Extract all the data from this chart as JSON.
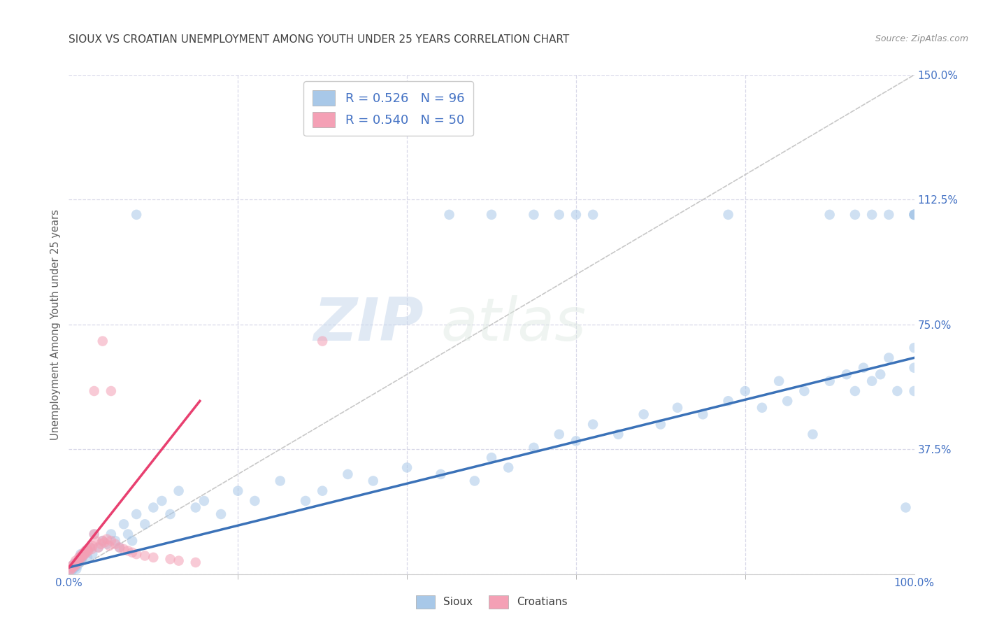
{
  "title": "SIOUX VS CROATIAN UNEMPLOYMENT AMONG YOUTH UNDER 25 YEARS CORRELATION CHART",
  "source": "Source: ZipAtlas.com",
  "ylabel": "Unemployment Among Youth under 25 years",
  "xlim": [
    0.0,
    1.0
  ],
  "ylim": [
    0.0,
    1.5
  ],
  "yticks": [
    0.0,
    0.375,
    0.75,
    1.125,
    1.5
  ],
  "yticklabels": [
    "",
    "37.5%",
    "75.0%",
    "112.5%",
    "150.0%"
  ],
  "sioux_R": 0.526,
  "sioux_N": 96,
  "croatian_R": 0.54,
  "croatian_N": 50,
  "sioux_color": "#a8c8e8",
  "croatian_color": "#f4a0b5",
  "sioux_line_color": "#3b72b8",
  "croatian_line_color": "#e84070",
  "diagonal_color": "#c8c8c8",
  "background_color": "#ffffff",
  "grid_color": "#d8d8e8",
  "title_color": "#404040",
  "axis_color": "#4472c4",
  "legend_color": "#4472c4",
  "watermark_zip": "ZIP",
  "watermark_atlas": "atlas",
  "marker_size": 110,
  "marker_alpha": 0.55,
  "sioux_x": [
    0.001,
    0.002,
    0.003,
    0.004,
    0.005,
    0.006,
    0.007,
    0.008,
    0.009,
    0.01,
    0.011,
    0.012,
    0.013,
    0.014,
    0.015,
    0.016,
    0.018,
    0.02,
    0.022,
    0.025,
    0.028,
    0.03,
    0.035,
    0.04,
    0.045,
    0.05,
    0.055,
    0.06,
    0.065,
    0.07,
    0.075,
    0.08,
    0.09,
    0.1,
    0.11,
    0.12,
    0.13,
    0.15,
    0.16,
    0.18,
    0.2,
    0.22,
    0.25,
    0.28,
    0.3,
    0.33,
    0.36,
    0.4,
    0.44,
    0.48,
    0.5,
    0.52,
    0.55,
    0.58,
    0.6,
    0.62,
    0.65,
    0.68,
    0.7,
    0.72,
    0.75,
    0.78,
    0.8,
    0.82,
    0.84,
    0.85,
    0.87,
    0.88,
    0.9,
    0.92,
    0.93,
    0.94,
    0.95,
    0.96,
    0.97,
    0.98,
    0.99,
    1.0,
    1.0,
    1.0,
    0.08,
    0.45,
    0.5,
    0.55,
    0.58,
    0.6,
    0.62,
    0.78,
    0.9,
    0.93,
    0.95,
    0.97,
    1.0,
    1.0,
    1.0,
    1.0
  ],
  "sioux_y": [
    0.015,
    0.02,
    0.01,
    0.025,
    0.015,
    0.03,
    0.02,
    0.035,
    0.015,
    0.025,
    0.035,
    0.04,
    0.05,
    0.06,
    0.04,
    0.05,
    0.06,
    0.07,
    0.05,
    0.08,
    0.06,
    0.12,
    0.08,
    0.1,
    0.09,
    0.12,
    0.1,
    0.08,
    0.15,
    0.12,
    0.1,
    0.18,
    0.15,
    0.2,
    0.22,
    0.18,
    0.25,
    0.2,
    0.22,
    0.18,
    0.25,
    0.22,
    0.28,
    0.22,
    0.25,
    0.3,
    0.28,
    0.32,
    0.3,
    0.28,
    0.35,
    0.32,
    0.38,
    0.42,
    0.4,
    0.45,
    0.42,
    0.48,
    0.45,
    0.5,
    0.48,
    0.52,
    0.55,
    0.5,
    0.58,
    0.52,
    0.55,
    0.42,
    0.58,
    0.6,
    0.55,
    0.62,
    0.58,
    0.6,
    0.65,
    0.55,
    0.2,
    0.55,
    0.62,
    0.68,
    1.08,
    1.08,
    1.08,
    1.08,
    1.08,
    1.08,
    1.08,
    1.08,
    1.08,
    1.08,
    1.08,
    1.08,
    1.08,
    1.08,
    1.08,
    1.08
  ],
  "croatian_x": [
    0.001,
    0.002,
    0.003,
    0.004,
    0.005,
    0.006,
    0.007,
    0.008,
    0.009,
    0.01,
    0.011,
    0.012,
    0.013,
    0.014,
    0.015,
    0.016,
    0.017,
    0.018,
    0.019,
    0.02,
    0.021,
    0.022,
    0.023,
    0.025,
    0.027,
    0.028,
    0.03,
    0.032,
    0.035,
    0.038,
    0.04,
    0.042,
    0.045,
    0.048,
    0.05,
    0.055,
    0.06,
    0.065,
    0.07,
    0.075,
    0.08,
    0.09,
    0.1,
    0.12,
    0.13,
    0.15,
    0.03,
    0.04,
    0.05,
    0.3
  ],
  "croatian_y": [
    0.01,
    0.02,
    0.015,
    0.025,
    0.02,
    0.03,
    0.025,
    0.04,
    0.03,
    0.035,
    0.04,
    0.05,
    0.045,
    0.055,
    0.05,
    0.06,
    0.055,
    0.065,
    0.06,
    0.07,
    0.065,
    0.075,
    0.07,
    0.08,
    0.075,
    0.085,
    0.12,
    0.1,
    0.08,
    0.09,
    0.1,
    0.095,
    0.105,
    0.085,
    0.1,
    0.09,
    0.08,
    0.075,
    0.07,
    0.065,
    0.06,
    0.055,
    0.05,
    0.045,
    0.04,
    0.035,
    0.55,
    0.7,
    0.55,
    0.7
  ],
  "sioux_line_x0": 0.0,
  "sioux_line_x1": 1.0,
  "sioux_line_y0": 0.02,
  "sioux_line_y1": 0.65,
  "croatian_line_x0": 0.0,
  "croatian_line_x1": 0.155,
  "croatian_line_y0": 0.02,
  "croatian_line_y1": 0.52
}
